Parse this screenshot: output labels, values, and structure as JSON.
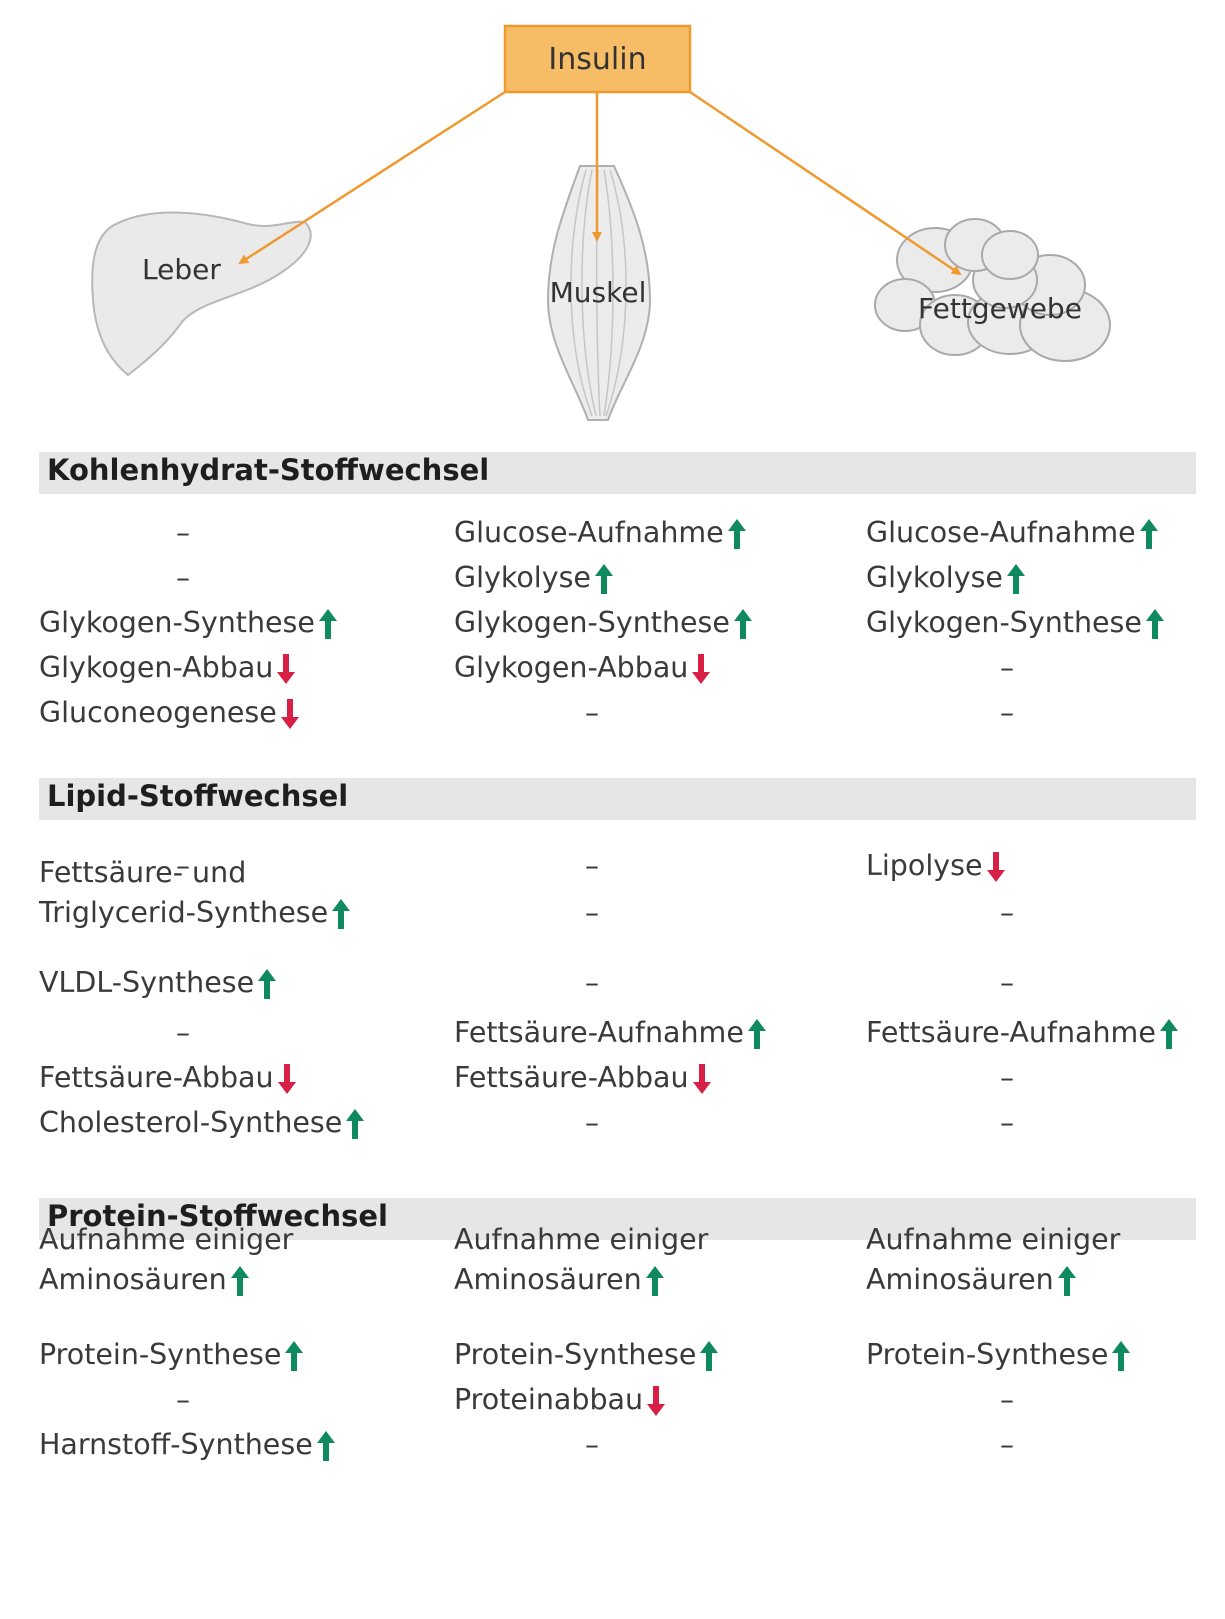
{
  "hormone": "Insulin",
  "organs": [
    "Leber",
    "Muskel",
    "Fettgewebe"
  ],
  "colors": {
    "increase": "#0f8a5f",
    "decrease": "#d81f45",
    "insulin_box_fill": "#f7bd66",
    "insulin_box_border": "#ee9a2c",
    "connector": "#ef9a2e",
    "section_bar": "#e6e6e6"
  },
  "sections": [
    {
      "title": "Kohlenhydrat-Stoffwechsel",
      "rows": [
        [
          {
            "text": "–"
          },
          {
            "text": "Glucose-Aufnahme",
            "arrow": "up"
          },
          {
            "text": "Glucose-Aufnahme",
            "arrow": "up"
          }
        ],
        [
          {
            "text": "–"
          },
          {
            "text": "Glykolyse",
            "arrow": "up"
          },
          {
            "text": "Glykolyse",
            "arrow": "up"
          }
        ],
        [
          {
            "text": "Glykogen-Synthese",
            "arrow": "up"
          },
          {
            "text": "Glykogen-Synthese",
            "arrow": "up"
          },
          {
            "text": "Glykogen-Synthese",
            "arrow": "up"
          }
        ],
        [
          {
            "text": "Glykogen-Abbau",
            "arrow": "down"
          },
          {
            "text": "Glykogen-Abbau",
            "arrow": "down"
          },
          {
            "text": "–"
          }
        ],
        [
          {
            "text": "Gluconeogenese",
            "arrow": "down"
          },
          {
            "text": "–"
          },
          {
            "text": "–"
          }
        ]
      ]
    },
    {
      "title": "Lipid-Stoffwechsel",
      "rows": [
        [
          {
            "text": "–"
          },
          {
            "text": "–"
          },
          {
            "text": "Lipolyse",
            "arrow": "down"
          }
        ],
        [
          {
            "text": "Fettsäure- und\nTriglycerid-Synthese",
            "arrow": "up"
          },
          {
            "text": "–"
          },
          {
            "text": "–"
          }
        ],
        [
          {
            "text": "VLDL-Synthese",
            "arrow": "up"
          },
          {
            "text": "–"
          },
          {
            "text": "–"
          }
        ],
        [
          {
            "text": "–"
          },
          {
            "text": "Fettsäure-Aufnahme",
            "arrow": "up"
          },
          {
            "text": "Fettsäure-Aufnahme",
            "arrow": "up"
          }
        ],
        [
          {
            "text": "Fettsäure-Abbau",
            "arrow": "down"
          },
          {
            "text": "Fettsäure-Abbau",
            "arrow": "down"
          },
          {
            "text": "–"
          }
        ],
        [
          {
            "text": "Cholesterol-Synthese",
            "arrow": "up"
          },
          {
            "text": "–"
          },
          {
            "text": "–"
          }
        ]
      ]
    },
    {
      "title": "Protein-Stoffwechsel",
      "rows": [
        [
          {
            "text": "Aufnahme einiger\nAminosäuren",
            "arrow": "up"
          },
          {
            "text": "Aufnahme einiger\nAminosäuren",
            "arrow": "up"
          },
          {
            "text": "Aufnahme einiger\nAminosäuren",
            "arrow": "up"
          }
        ],
        [
          {
            "text": "Protein-Synthese",
            "arrow": "up"
          },
          {
            "text": "Protein-Synthese",
            "arrow": "up"
          },
          {
            "text": "Protein-Synthese",
            "arrow": "up"
          }
        ],
        [
          {
            "text": "–"
          },
          {
            "text": "Proteinabbau",
            "arrow": "down"
          },
          {
            "text": "–"
          }
        ],
        [
          {
            "text": "Harnstoff-Synthese",
            "arrow": "up"
          },
          {
            "text": "–"
          },
          {
            "text": "–"
          }
        ]
      ]
    }
  ]
}
